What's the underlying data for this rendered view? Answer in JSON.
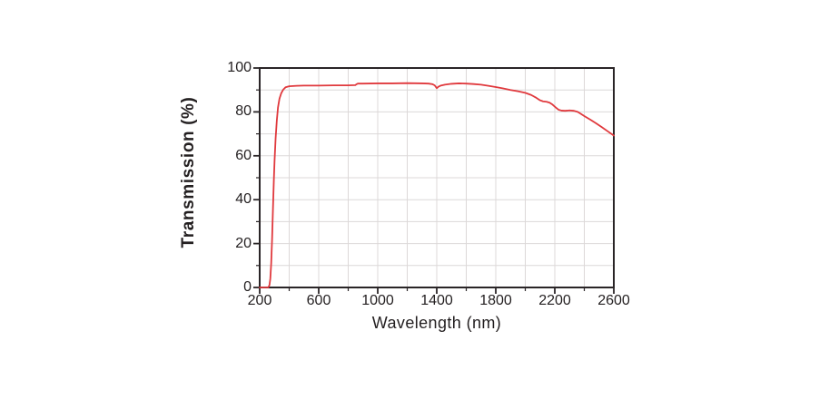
{
  "chart_data": {
    "type": "line",
    "title": "",
    "xlabel": "Wavelength (nm)",
    "ylabel": "Transmission (%)",
    "xlim": [
      200,
      2600
    ],
    "ylim": [
      0,
      100
    ],
    "x_major_ticks": [
      200,
      600,
      1000,
      1400,
      1800,
      2200,
      2600
    ],
    "x_minor_tick_step": 200,
    "y_major_ticks": [
      0,
      20,
      40,
      60,
      80,
      100
    ],
    "y_minor_tick_step": 10,
    "grid": "major+minor, light gray, on",
    "legend": "none",
    "colors": {
      "curve": "#e0393d",
      "grid": "#dcd8d8",
      "frame": "#2a2527",
      "text": "#231f20",
      "background": "#ffffff"
    },
    "series": [
      {
        "name": "transmission",
        "points": [
          [
            200,
            0
          ],
          [
            258,
            0
          ],
          [
            266,
            1
          ],
          [
            272,
            4
          ],
          [
            278,
            11
          ],
          [
            284,
            22
          ],
          [
            290,
            36
          ],
          [
            296,
            49
          ],
          [
            301,
            58
          ],
          [
            308,
            68
          ],
          [
            316,
            76
          ],
          [
            324,
            82
          ],
          [
            334,
            86
          ],
          [
            346,
            88.5
          ],
          [
            360,
            90.2
          ],
          [
            375,
            91.2
          ],
          [
            400,
            91.7
          ],
          [
            450,
            91.9
          ],
          [
            500,
            92
          ],
          [
            600,
            92
          ],
          [
            700,
            92.1
          ],
          [
            800,
            92.1
          ],
          [
            848,
            92.2
          ],
          [
            856,
            92.6
          ],
          [
            865,
            92.9
          ],
          [
            900,
            92.9
          ],
          [
            1000,
            93
          ],
          [
            1100,
            93
          ],
          [
            1200,
            93.1
          ],
          [
            1300,
            93
          ],
          [
            1345,
            92.9
          ],
          [
            1372,
            92.6
          ],
          [
            1386,
            92.1
          ],
          [
            1400,
            90.8
          ],
          [
            1412,
            91.5
          ],
          [
            1428,
            92
          ],
          [
            1455,
            92.4
          ],
          [
            1500,
            92.8
          ],
          [
            1550,
            93
          ],
          [
            1600,
            92.9
          ],
          [
            1650,
            92.7
          ],
          [
            1700,
            92.4
          ],
          [
            1750,
            91.9
          ],
          [
            1800,
            91.3
          ],
          [
            1850,
            90.7
          ],
          [
            1900,
            90
          ],
          [
            1950,
            89.4
          ],
          [
            2000,
            88.7
          ],
          [
            2040,
            87.7
          ],
          [
            2070,
            86.6
          ],
          [
            2100,
            85.3
          ],
          [
            2120,
            84.8
          ],
          [
            2145,
            84.6
          ],
          [
            2165,
            84.2
          ],
          [
            2185,
            83.3
          ],
          [
            2205,
            82.1
          ],
          [
            2225,
            81
          ],
          [
            2245,
            80.6
          ],
          [
            2270,
            80.5
          ],
          [
            2300,
            80.7
          ],
          [
            2330,
            80.5
          ],
          [
            2355,
            80
          ],
          [
            2375,
            79.2
          ],
          [
            2400,
            78.1
          ],
          [
            2440,
            76.5
          ],
          [
            2480,
            74.8
          ],
          [
            2520,
            73
          ],
          [
            2560,
            71.1
          ],
          [
            2600,
            69.2
          ]
        ]
      }
    ]
  }
}
